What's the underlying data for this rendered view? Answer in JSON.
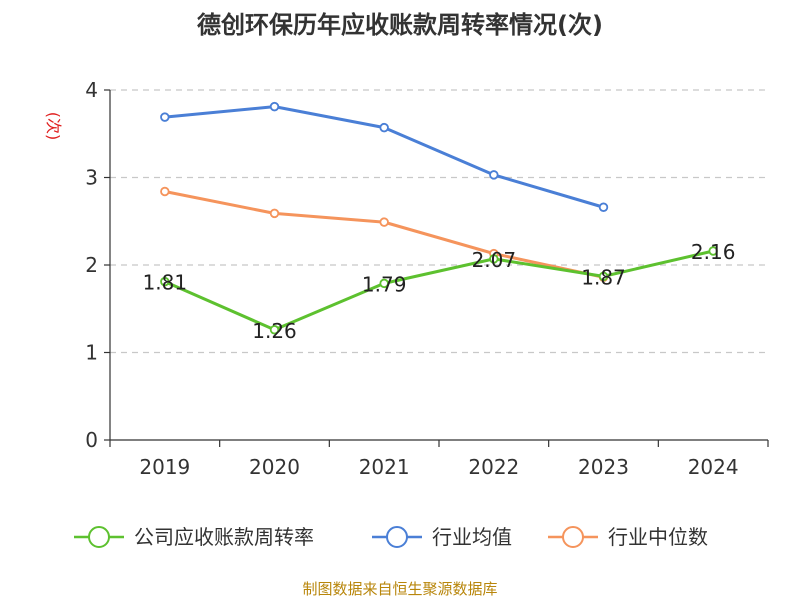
{
  "chart_data": {
    "type": "line",
    "title": "德创环保历年应收账款周转率情况(次)",
    "ylabel": "(次)",
    "xlabel": "",
    "categories": [
      "2019",
      "2020",
      "2021",
      "2022",
      "2023",
      "2024"
    ],
    "ylim": [
      0,
      4
    ],
    "yticks": [
      0,
      1,
      2,
      3,
      4
    ],
    "grid": true,
    "legend_position": "bottom",
    "series": [
      {
        "name": "公司应收账款周转率",
        "color": "#5dc12f",
        "values": [
          1.81,
          1.26,
          1.79,
          2.07,
          1.87,
          2.16
        ],
        "labels": [
          "1.81",
          "1.26",
          "1.79",
          "2.07",
          "1.87",
          "2.16"
        ]
      },
      {
        "name": "行业均值",
        "color": "#4a7fd6",
        "values": [
          3.69,
          3.81,
          3.57,
          3.03,
          2.66,
          null
        ]
      },
      {
        "name": "行业中位数",
        "color": "#f5945c",
        "values": [
          2.84,
          2.59,
          2.49,
          2.13,
          1.86,
          null
        ]
      }
    ],
    "source": "制图数据来自恒生聚源数据库"
  }
}
